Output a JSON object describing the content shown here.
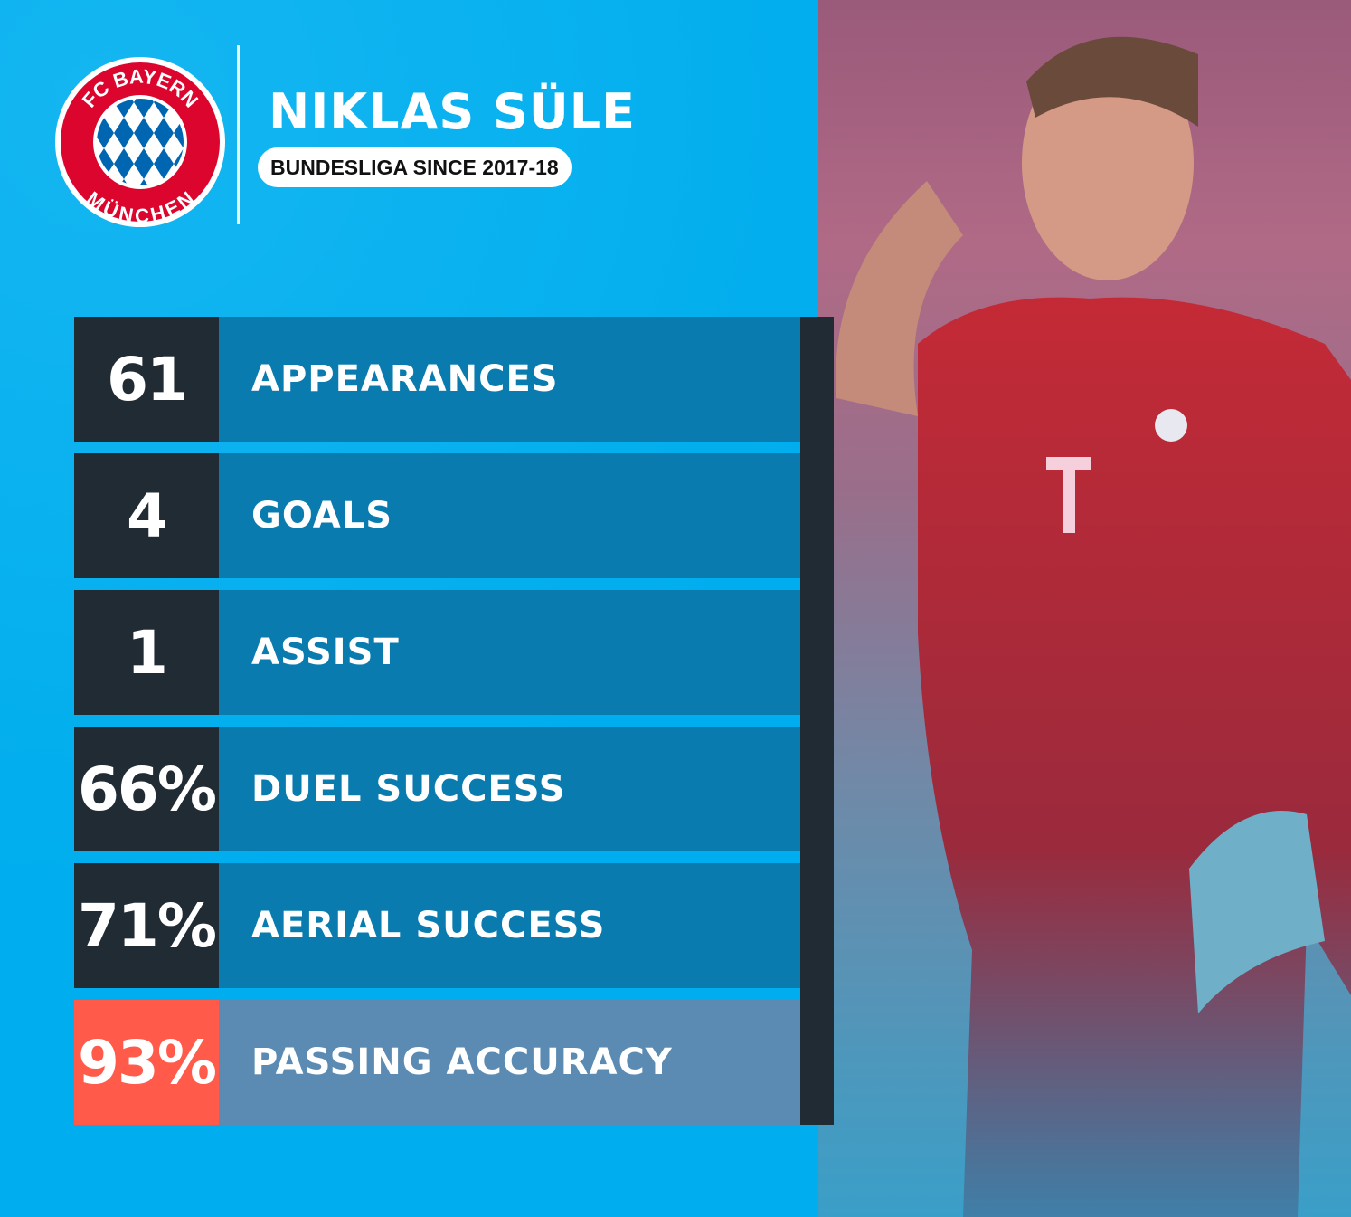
{
  "header": {
    "club_logo_text": [
      "FC BAYERN",
      "MÜNCHEN"
    ],
    "player_name": "NIKLAS SÜLE",
    "subtitle": "BUNDESLIGA SINCE 2017-18"
  },
  "stats": [
    {
      "value": "61",
      "label": "APPEARANCES"
    },
    {
      "value": "4",
      "label": "GOALS"
    },
    {
      "value": "1",
      "label": "ASSIST"
    },
    {
      "value": "66%",
      "label": "DUEL SUCCESS"
    },
    {
      "value": "71%",
      "label": "AERIAL SUCCESS"
    },
    {
      "value": "93%",
      "label": "PASSING ACCURACY",
      "highlighted": true
    }
  ],
  "colors": {
    "background": "#00adee",
    "number_box": "#212b34",
    "label_bar": "#0a7bae",
    "highlight_number": "#ff5a4a",
    "highlight_label": "#5b8bb2",
    "club_red": "#dc052d",
    "club_blue": "#0066b2"
  }
}
